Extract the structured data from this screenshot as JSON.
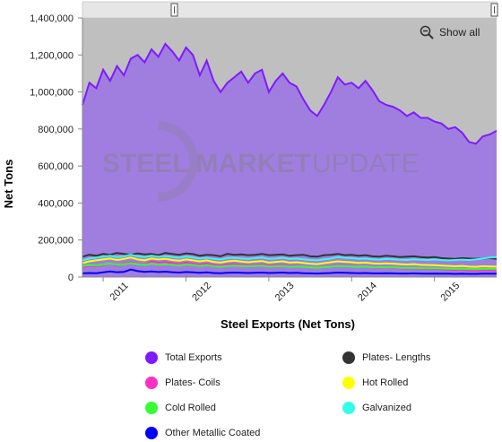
{
  "chart_data": {
    "type": "area",
    "title": "",
    "xlabel": "Steel Exports (Net Tons)",
    "ylabel": "Net Tons",
    "ylim": [
      0,
      1400000
    ],
    "yticks": [
      "0",
      "200,000",
      "400,000",
      "600,000",
      "800,000",
      "1,000,000",
      "1,200,000",
      "1,400,000"
    ],
    "xticks": [
      "2011",
      "2012",
      "2013",
      "2014",
      "2015"
    ],
    "x": [
      "2010-10",
      "2010-11",
      "2010-12",
      "2011-01",
      "2011-02",
      "2011-03",
      "2011-04",
      "2011-05",
      "2011-06",
      "2011-07",
      "2011-08",
      "2011-09",
      "2011-10",
      "2011-11",
      "2011-12",
      "2012-01",
      "2012-02",
      "2012-03",
      "2012-04",
      "2012-05",
      "2012-06",
      "2012-07",
      "2012-08",
      "2012-09",
      "2012-10",
      "2012-11",
      "2012-12",
      "2013-01",
      "2013-02",
      "2013-03",
      "2013-04",
      "2013-05",
      "2013-06",
      "2013-07",
      "2013-08",
      "2013-09",
      "2013-10",
      "2013-11",
      "2013-12",
      "2014-01",
      "2014-02",
      "2014-03",
      "2014-04",
      "2014-05",
      "2014-06",
      "2014-07",
      "2014-08",
      "2014-09",
      "2014-10",
      "2014-11",
      "2014-12",
      "2015-01",
      "2015-02",
      "2015-03",
      "2015-04",
      "2015-05",
      "2015-06",
      "2015-07",
      "2015-08",
      "2015-09",
      "2015-10"
    ],
    "series": [
      {
        "name": "Total Exports",
        "color": "#7f1aff",
        "values": [
          930000,
          1050000,
          1020000,
          1120000,
          1060000,
          1140000,
          1090000,
          1180000,
          1200000,
          1160000,
          1230000,
          1190000,
          1260000,
          1220000,
          1170000,
          1240000,
          1200000,
          1090000,
          1170000,
          1060000,
          1000000,
          1050000,
          1080000,
          1110000,
          1050000,
          1100000,
          1120000,
          1000000,
          1060000,
          1100000,
          1050000,
          1030000,
          960000,
          900000,
          870000,
          930000,
          1000000,
          1080000,
          1040000,
          1050000,
          1020000,
          1060000,
          1010000,
          950000,
          930000,
          920000,
          900000,
          870000,
          890000,
          860000,
          860000,
          840000,
          830000,
          800000,
          810000,
          780000,
          730000,
          720000,
          760000,
          770000,
          790000
        ]
      },
      {
        "name": "Plates- Lengths",
        "color": "#333333",
        "values": [
          110000,
          120000,
          115000,
          125000,
          120000,
          130000,
          125000,
          120000,
          128000,
          122000,
          125000,
          118000,
          130000,
          125000,
          120000,
          128000,
          124000,
          115000,
          120000,
          118000,
          112000,
          125000,
          120000,
          122000,
          118000,
          120000,
          125000,
          118000,
          120000,
          122000,
          115000,
          118000,
          120000,
          112000,
          110000,
          118000,
          120000,
          125000,
          118000,
          120000,
          115000,
          118000,
          112000,
          110000,
          115000,
          112000,
          108000,
          110000,
          112000,
          108000,
          105000,
          108000,
          102000,
          100000,
          98000,
          102000,
          100000,
          98000,
          100000,
          102000,
          98000
        ]
      },
      {
        "name": "Plates- Coils",
        "color": "#ff2ec4",
        "values": [
          55000,
          60000,
          58000,
          65000,
          70000,
          62000,
          75000,
          80000,
          72000,
          68000,
          85000,
          78000,
          82000,
          75000,
          70000,
          78000,
          72000,
          68000,
          72000,
          65000,
          60000,
          68000,
          70000,
          66000,
          62000,
          65000,
          68000,
          60000,
          62000,
          65000,
          58000,
          60000,
          55000,
          52000,
          50000,
          55000,
          58000,
          62000,
          60000,
          58000,
          55000,
          56000,
          52000,
          50000,
          52000,
          50000,
          48000,
          46000,
          48000,
          45000,
          44000,
          45000,
          42000,
          40000,
          38000,
          40000,
          36000,
          35000,
          38000,
          37000,
          36000
        ]
      },
      {
        "name": "Hot Rolled",
        "color": "#ffff00",
        "values": [
          75000,
          85000,
          90000,
          95000,
          100000,
          92000,
          98000,
          105000,
          95000,
          90000,
          100000,
          95000,
          98000,
          92000,
          88000,
          95000,
          90000,
          85000,
          90000,
          82000,
          78000,
          85000,
          88000,
          84000,
          80000,
          84000,
          86000,
          78000,
          82000,
          85000,
          78000,
          80000,
          76000,
          72000,
          70000,
          75000,
          80000,
          85000,
          82000,
          80000,
          76000,
          78000,
          74000,
          72000,
          74000,
          72000,
          70000,
          68000,
          70000,
          66000,
          65000,
          64000,
          62000,
          60000,
          58000,
          60000,
          56000,
          55000,
          58000,
          57000,
          56000
        ]
      },
      {
        "name": "Cold Rolled",
        "color": "#33ff33",
        "values": [
          60000,
          65000,
          62000,
          68000,
          72000,
          66000,
          70000,
          75000,
          70000,
          66000,
          72000,
          68000,
          70000,
          66000,
          62000,
          68000,
          65000,
          60000,
          64000,
          58000,
          55000,
          60000,
          62000,
          60000,
          58000,
          60000,
          62000,
          56000,
          58000,
          60000,
          55000,
          57000,
          55000,
          52000,
          50000,
          54000,
          56000,
          60000,
          58000,
          57000,
          55000,
          56000,
          53000,
          52000,
          53000,
          52000,
          50000,
          49000,
          50000,
          48000,
          47000,
          48000,
          46000,
          45000,
          44000,
          45000,
          43000,
          42000,
          44000,
          44000,
          43000
        ]
      },
      {
        "name": "Galvanized",
        "color": "#33ffe6",
        "values": [
          90000,
          100000,
          105000,
          110000,
          115000,
          108000,
          112000,
          120000,
          112000,
          108000,
          115000,
          110000,
          112000,
          108000,
          104000,
          110000,
          106000,
          100000,
          104000,
          98000,
          95000,
          102000,
          104000,
          100000,
          98000,
          102000,
          105000,
          98000,
          100000,
          104000,
          98000,
          100000,
          96000,
          92000,
          90000,
          96000,
          100000,
          108000,
          104000,
          102000,
          98000,
          100000,
          96000,
          94000,
          98000,
          96000,
          94000,
          92000,
          96000,
          94000,
          92000,
          95000,
          92000,
          90000,
          92000,
          94000,
          92000,
          95000,
          100000,
          105000,
          108000
        ]
      },
      {
        "name": "Other Metallic Coated",
        "color": "#0000ff",
        "values": [
          20000,
          22000,
          21000,
          25000,
          30000,
          26000,
          28000,
          40000,
          32000,
          28000,
          30000,
          27000,
          29000,
          26000,
          24000,
          27000,
          25000,
          23000,
          25000,
          22000,
          21000,
          23000,
          24000,
          23000,
          22000,
          23000,
          24000,
          22000,
          23000,
          24000,
          22000,
          23000,
          21000,
          20000,
          19000,
          21000,
          22000,
          24000,
          23000,
          22000,
          21000,
          22000,
          20000,
          20000,
          21000,
          20000,
          19000,
          19000,
          20000,
          19000,
          18000,
          19000,
          18000,
          18000,
          17000,
          18000,
          17000,
          17000,
          18000,
          18000,
          18000
        ]
      }
    ],
    "legend_placement": "bottom",
    "grid": false
  },
  "watermark": {
    "text_bold": "STEEL MARKET",
    "text_light": "UPDATE"
  },
  "controls": {
    "show_all_label": "Show all"
  },
  "legend": [
    {
      "label": "Total Exports",
      "color": "#7f1aff"
    },
    {
      "label": "Plates- Lengths",
      "color": "#333333"
    },
    {
      "label": "Plates- Coils",
      "color": "#ff2ec4"
    },
    {
      "label": "Hot Rolled",
      "color": "#ffff00"
    },
    {
      "label": "Cold Rolled",
      "color": "#33ff33"
    },
    {
      "label": "Galvanized",
      "color": "#33ffe6"
    },
    {
      "label": "Other Metallic Coated",
      "color": "#0000ff"
    }
  ],
  "colors": {
    "plot_bg": "#bfbfbf",
    "area_fill": "#a07ee0",
    "navigator_bg": "#e6e6e6"
  }
}
